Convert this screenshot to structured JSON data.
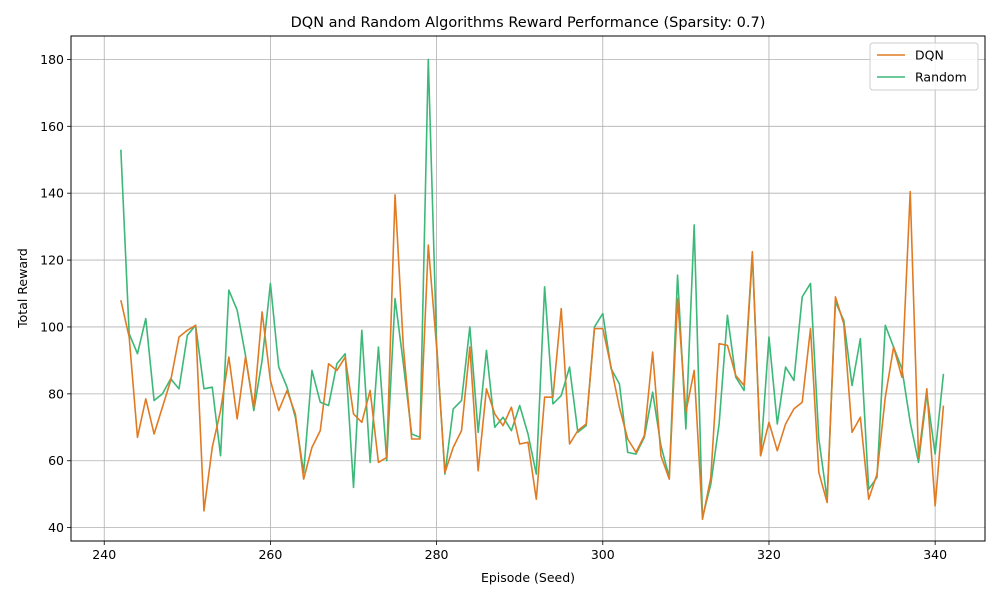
{
  "chart_data": {
    "type": "line",
    "title": "DQN and Random Algorithms Reward Performance (Sparsity: 0.7)",
    "xlabel": "Episode (Seed)",
    "ylabel": "Total Reward",
    "xlim": [
      236,
      346
    ],
    "ylim": [
      36,
      187
    ],
    "xticks": [
      240,
      260,
      280,
      300,
      320,
      340
    ],
    "yticks": [
      40,
      60,
      80,
      100,
      120,
      140,
      160,
      180
    ],
    "grid": true,
    "legend_position": "top-right",
    "x_start": 242,
    "series": [
      {
        "name": "DQN",
        "color": "#e07b24",
        "values": [
          108,
          97,
          67,
          78.5,
          68,
          76,
          84,
          97,
          99,
          100.5,
          45,
          64,
          75,
          91,
          72.5,
          91,
          76,
          104.5,
          84,
          75,
          81,
          74,
          54.5,
          64,
          69,
          89,
          87,
          91,
          74,
          71.5,
          81,
          59.5,
          61,
          139.5,
          94,
          66.5,
          66.5,
          124.5,
          94,
          56.5,
          64,
          69,
          94,
          57,
          81.5,
          74,
          70.5,
          76,
          65,
          65.5,
          48.5,
          79,
          79,
          105.5,
          65,
          69,
          71,
          99.5,
          99.5,
          88,
          76,
          66.5,
          62.5,
          67.5,
          92.5,
          61.5,
          54.5,
          108.5,
          74.5,
          87,
          42.5,
          55,
          95,
          94.5,
          85.5,
          82.5,
          122.5,
          61.5,
          71.5,
          63,
          71,
          75.5,
          77.5,
          99.5,
          56.5,
          47.5,
          109,
          101,
          68.5,
          73,
          48.5,
          56,
          79,
          94,
          85,
          140.5,
          61,
          81.5,
          46.5,
          76.5
        ]
      },
      {
        "name": "Random",
        "color": "#3cb878",
        "values": [
          153,
          98,
          92,
          102.5,
          78,
          80,
          84.5,
          81.5,
          97.5,
          100.5,
          81.5,
          82,
          61.5,
          111,
          105,
          91.5,
          75,
          90,
          113,
          88,
          82,
          73,
          56.5,
          87,
          77.5,
          76.5,
          89,
          92,
          52,
          99,
          59.5,
          94,
          60,
          108.5,
          89,
          68,
          67,
          180,
          95,
          56,
          75.5,
          78,
          100,
          68.5,
          93,
          70,
          73,
          69,
          76.5,
          68,
          56,
          112,
          77,
          79.5,
          88,
          68.5,
          70.5,
          100,
          104,
          87.5,
          83,
          62.5,
          62,
          67,
          80.5,
          64.5,
          55,
          115.5,
          69.5,
          130.5,
          43,
          53,
          71,
          103.5,
          85,
          81,
          121.5,
          61.5,
          97,
          71,
          88,
          84,
          109,
          113,
          66.5,
          48.5,
          107.5,
          102,
          82.5,
          96.5,
          51.5,
          55,
          100.5,
          94,
          87.5,
          71.5,
          59.5,
          80,
          62,
          86
        ]
      }
    ]
  }
}
